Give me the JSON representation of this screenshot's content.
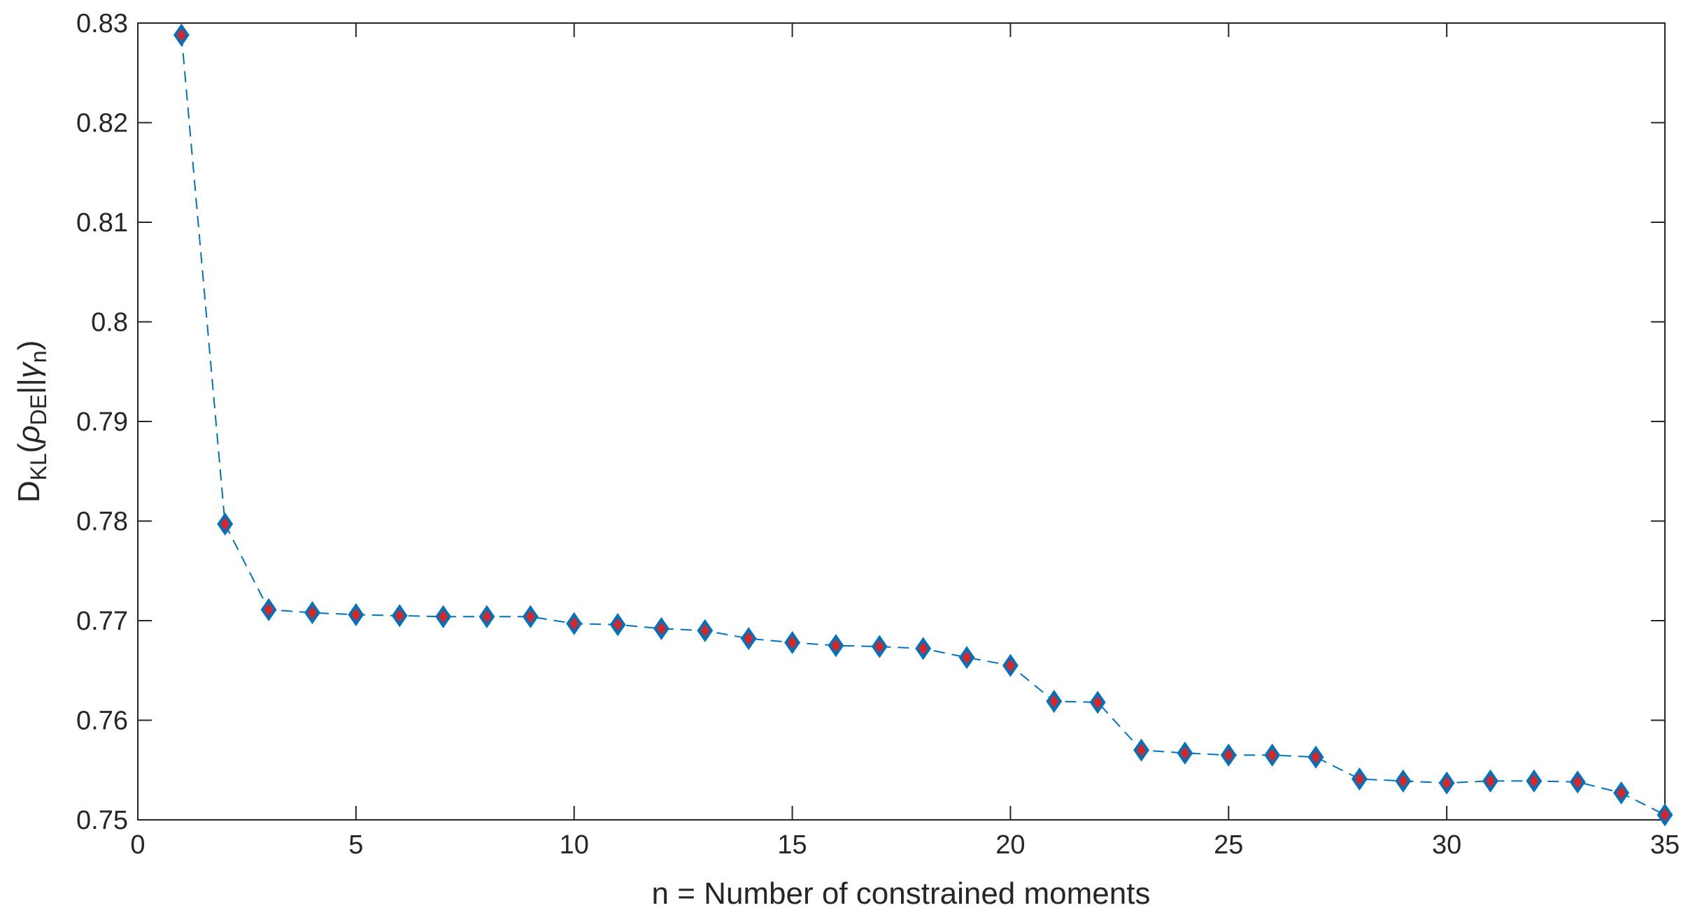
{
  "chart_data": {
    "type": "line",
    "title": "",
    "xlabel": "n = Number of constrained moments",
    "ylabel": {
      "prefix": "D",
      "prefix_sub": "KL",
      "open": "(",
      "rho": "ρ",
      "rho_sub": "DE",
      "separator": "||",
      "gamma": "γ",
      "gamma_sub": "n",
      "close": ")"
    },
    "xlim": [
      0,
      35
    ],
    "ylim": [
      0.75,
      0.83
    ],
    "xticks": [
      0,
      5,
      10,
      15,
      20,
      25,
      30,
      35
    ],
    "yticks": [
      0.75,
      0.76,
      0.77,
      0.78,
      0.79,
      0.8,
      0.81,
      0.82,
      0.83
    ],
    "xtick_labels": [
      "0",
      "5",
      "10",
      "15",
      "20",
      "25",
      "30",
      "35"
    ],
    "ytick_labels": [
      "0.75",
      "0.76",
      "0.77",
      "0.78",
      "0.79",
      "0.8",
      "0.81",
      "0.82",
      "0.83"
    ],
    "grid": false,
    "line_style": "dashed",
    "line_color": "#0072BD",
    "marker": "diamond",
    "marker_edge_color": "#0072BD",
    "marker_face_color": "#D62728",
    "series": [
      {
        "x": [
          1,
          2,
          3,
          4,
          5,
          6,
          7,
          8,
          9,
          10,
          11,
          12,
          13,
          14,
          15,
          16,
          17,
          18,
          19,
          20,
          21,
          22,
          23,
          24,
          25,
          26,
          27,
          28,
          29,
          30,
          31,
          32,
          33,
          34,
          35
        ],
        "values": [
          0.8288,
          0.7797,
          0.7711,
          0.7708,
          0.7706,
          0.7705,
          0.7704,
          0.7704,
          0.7704,
          0.7697,
          0.7696,
          0.7692,
          0.769,
          0.7682,
          0.7678,
          0.7675,
          0.7674,
          0.7672,
          0.7663,
          0.7655,
          0.7619,
          0.7618,
          0.757,
          0.7567,
          0.7565,
          0.7565,
          0.7563,
          0.7541,
          0.7539,
          0.7537,
          0.7539,
          0.7539,
          0.7538,
          0.7527,
          0.7505
        ]
      }
    ]
  }
}
